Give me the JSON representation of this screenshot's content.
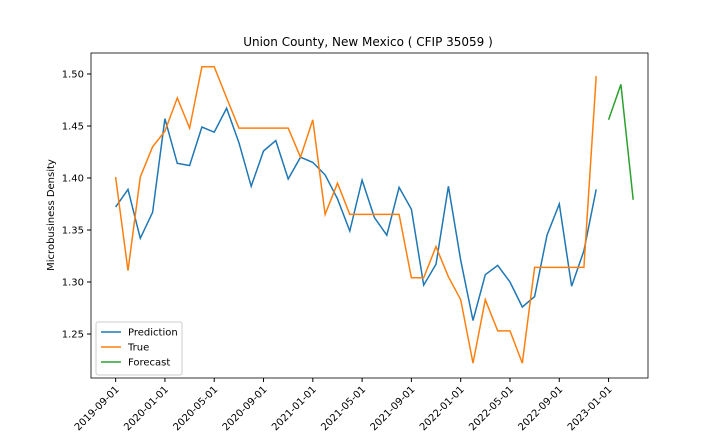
{
  "chart_data": {
    "type": "line",
    "title": "Union County, New Mexico ( CFIP 35059 )",
    "y_label": "Microbusiness Density",
    "x": [
      "2019-09-01",
      "2019-10-01",
      "2019-11-01",
      "2019-12-01",
      "2020-01-01",
      "2020-02-01",
      "2020-03-01",
      "2020-04-01",
      "2020-05-01",
      "2020-06-01",
      "2020-07-01",
      "2020-08-01",
      "2020-09-01",
      "2020-10-01",
      "2020-11-01",
      "2020-12-01",
      "2021-01-01",
      "2021-02-01",
      "2021-03-01",
      "2021-04-01",
      "2021-05-01",
      "2021-06-01",
      "2021-07-01",
      "2021-08-01",
      "2021-09-01",
      "2021-10-01",
      "2021-11-01",
      "2021-12-01",
      "2022-01-01",
      "2022-02-01",
      "2022-03-01",
      "2022-04-01",
      "2022-05-01",
      "2022-06-01",
      "2022-07-01",
      "2022-08-01",
      "2022-09-01",
      "2022-10-01",
      "2022-11-01",
      "2022-12-01",
      "2023-01-01",
      "2023-02-01",
      "2023-03-01"
    ],
    "series": [
      {
        "name": "Prediction",
        "color": "#1f77b4",
        "values": [
          1.372,
          1.389,
          1.342,
          1.367,
          1.457,
          1.414,
          1.412,
          1.449,
          1.444,
          1.467,
          1.434,
          1.392,
          1.426,
          1.436,
          1.399,
          1.42,
          1.415,
          1.403,
          1.38,
          1.349,
          1.398,
          1.362,
          1.345,
          1.391,
          1.37,
          1.297,
          1.317,
          1.392,
          1.321,
          1.263,
          1.307,
          1.316,
          1.3,
          1.276,
          1.286,
          1.345,
          1.375,
          1.296,
          1.33,
          1.389,
          null,
          null,
          null
        ]
      },
      {
        "name": "True",
        "color": "#ff7f0e",
        "values": [
          1.401,
          1.311,
          1.401,
          1.43,
          1.445,
          1.477,
          1.448,
          1.507,
          1.507,
          1.477,
          1.448,
          1.448,
          1.448,
          1.448,
          1.448,
          1.42,
          1.456,
          1.365,
          1.395,
          1.365,
          1.365,
          1.365,
          1.365,
          1.365,
          1.304,
          1.304,
          1.334,
          1.305,
          1.283,
          1.222,
          1.283,
          1.253,
          1.253,
          1.222,
          1.314,
          1.314,
          1.314,
          1.314,
          1.314,
          1.498,
          null,
          null,
          null
        ]
      },
      {
        "name": "Forecast",
        "color": "#2ca02c",
        "values": [
          null,
          null,
          null,
          null,
          null,
          null,
          null,
          null,
          null,
          null,
          null,
          null,
          null,
          null,
          null,
          null,
          null,
          null,
          null,
          null,
          null,
          null,
          null,
          null,
          null,
          null,
          null,
          null,
          null,
          null,
          null,
          null,
          null,
          null,
          null,
          null,
          null,
          null,
          null,
          null,
          1.456,
          1.49,
          1.379
        ]
      }
    ],
    "xlim": [
      "2019-07-01",
      "2023-04-07"
    ],
    "xticks": [
      "2019-09-01",
      "2020-01-01",
      "2020-05-01",
      "2020-09-01",
      "2021-01-01",
      "2021-05-01",
      "2021-09-01",
      "2022-01-01",
      "2022-05-01",
      "2022-09-01",
      "2023-01-01"
    ],
    "ylim": [
      1.2077,
      1.5202
    ],
    "yticks": [
      {
        "value": 1.25,
        "label": "1.25"
      },
      {
        "value": 1.3,
        "label": "1.30"
      },
      {
        "value": 1.35,
        "label": "1.35"
      },
      {
        "value": 1.4,
        "label": "1.40"
      },
      {
        "value": 1.45,
        "label": "1.45"
      },
      {
        "value": 1.5,
        "label": "1.50"
      }
    ],
    "legend": "lower left"
  }
}
